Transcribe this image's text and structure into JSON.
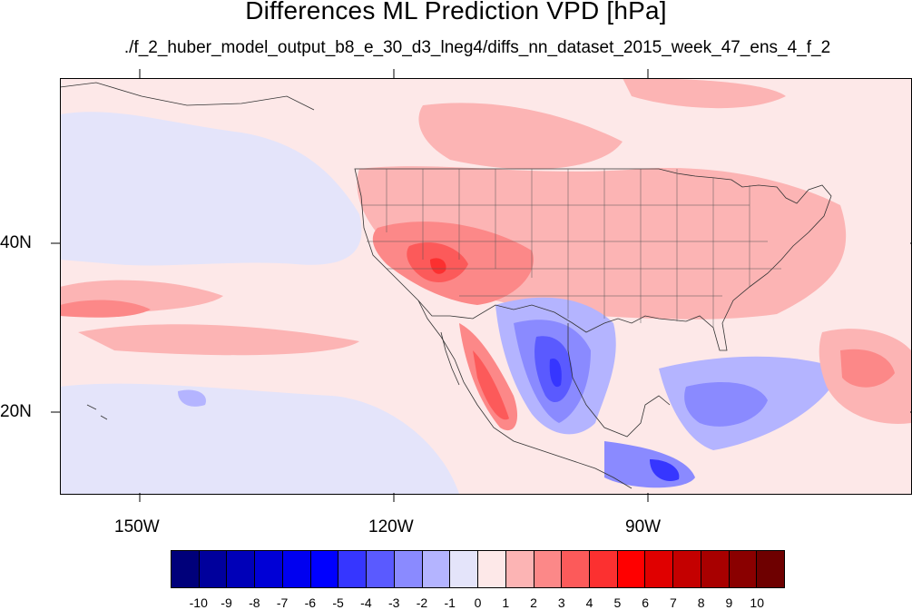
{
  "title": "Differences ML Prediction VPD [hPa]",
  "subtitle": "./f_2_huber_model_output_b8_e_30_d3_lneg4/diffs_nn_dataset_2015_week_47_ens_4_f_2",
  "map": {
    "projection": "lat-lon",
    "lon_range": [
      -160,
      -60
    ],
    "lat_range": [
      11,
      60
    ],
    "variable": "VPD difference",
    "units": "hPa",
    "x_ticks": [
      "150W",
      "120W",
      "90W"
    ],
    "y_ticks": [
      "40N",
      "20N"
    ]
  },
  "colorbar": {
    "labels": [
      "-10",
      "-9",
      "-8",
      "-7",
      "-6",
      "-5",
      "-4",
      "-3",
      "-2",
      "-1",
      "0",
      "1",
      "2",
      "3",
      "4",
      "5",
      "6",
      "7",
      "8",
      "9",
      "10"
    ],
    "colors": [
      "#00007a",
      "#00009c",
      "#0000b8",
      "#0000d6",
      "#0000f0",
      "#0000ff",
      "#3636ff",
      "#5a5aff",
      "#8a8aff",
      "#b4b4ff",
      "#e4e4fa",
      "#fde8e8",
      "#fcb4b4",
      "#fc8888",
      "#fc5a5a",
      "#fc3030",
      "#ff0000",
      "#e00000",
      "#c40000",
      "#a80000",
      "#8a0000",
      "#6e0000"
    ]
  }
}
